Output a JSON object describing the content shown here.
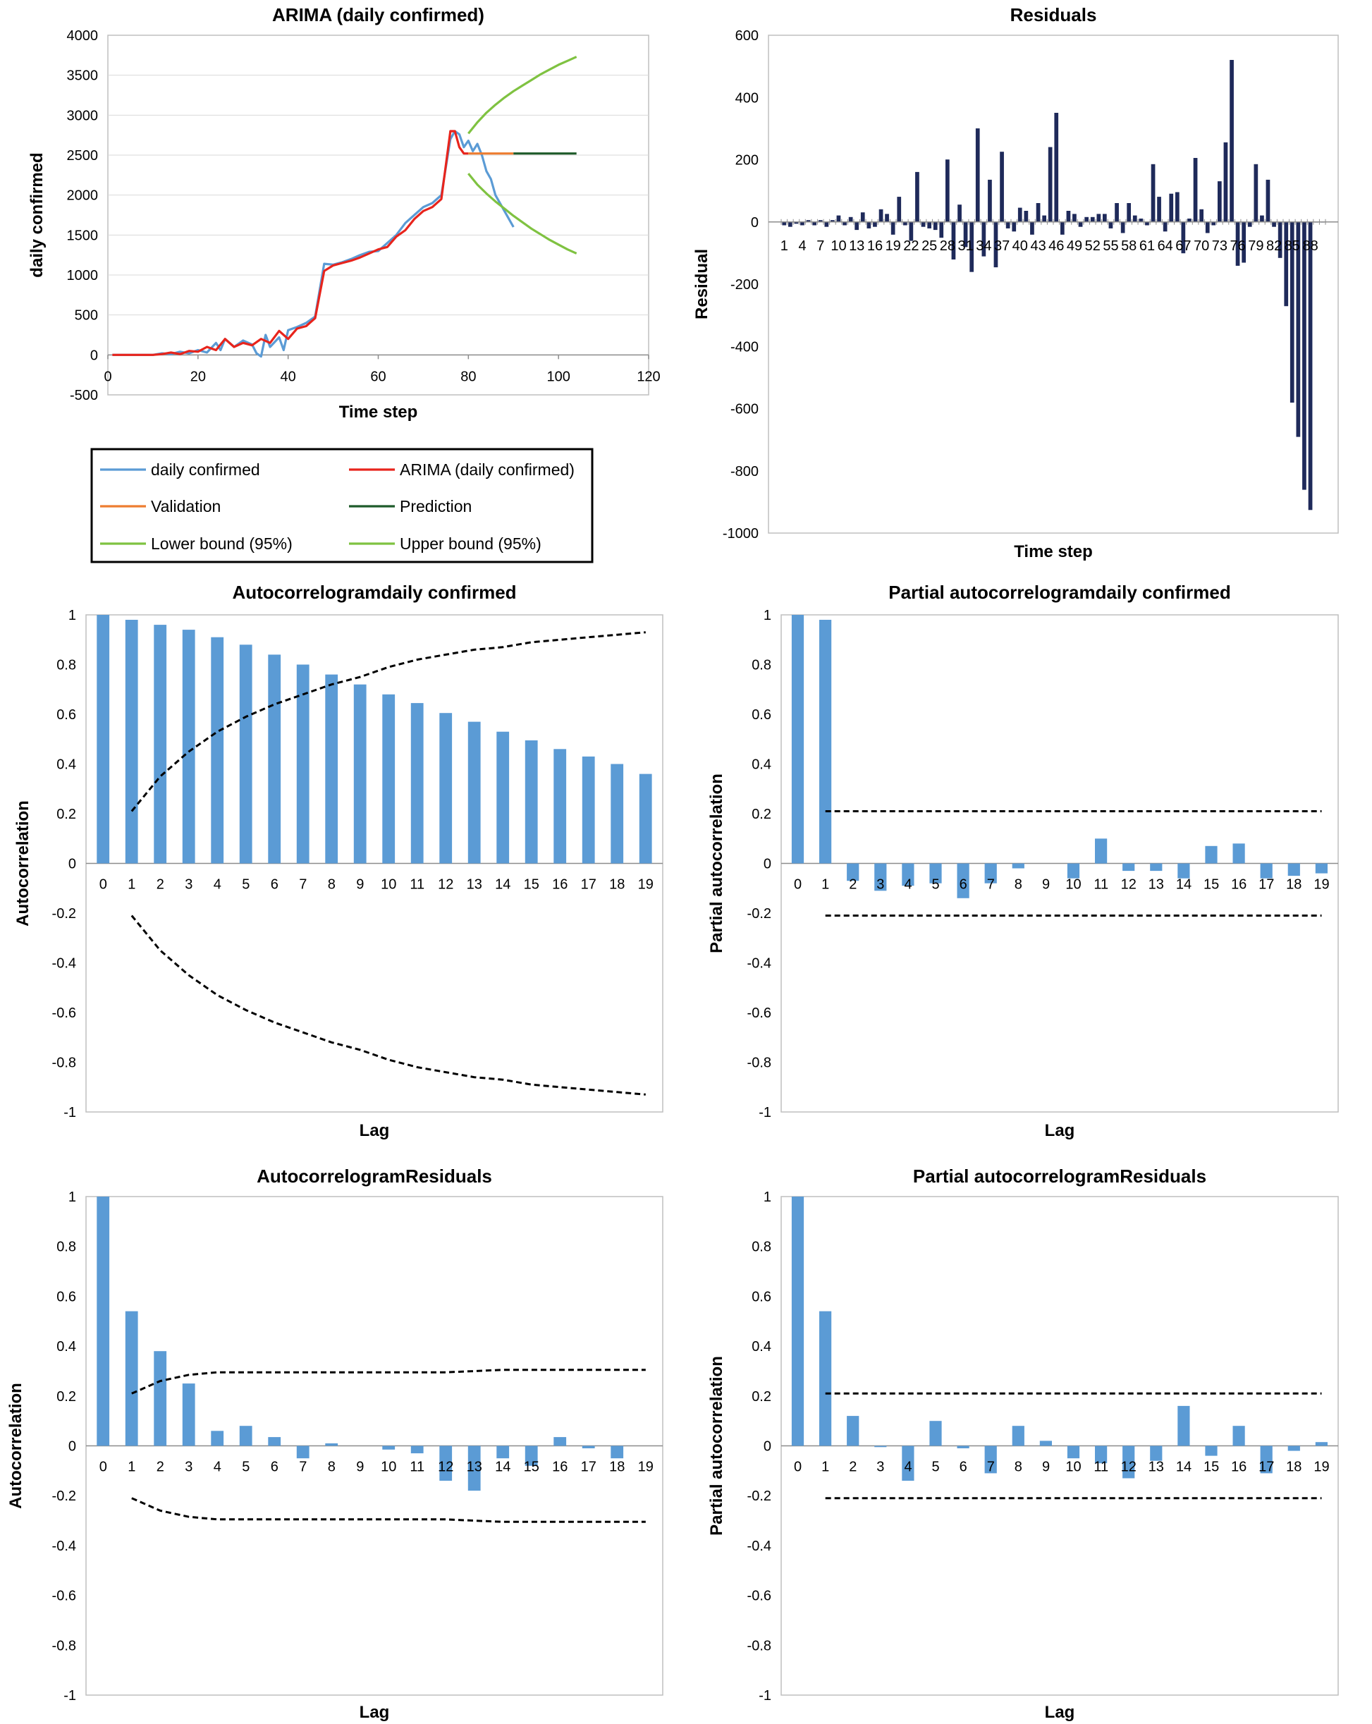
{
  "chart_data": [
    {
      "id": "arima",
      "type": "line",
      "title": "ARIMA (daily confirmed)",
      "xlabel": "Time step",
      "ylabel": "daily confirmed",
      "xlim": [
        0,
        120
      ],
      "ylim": [
        -500,
        4000
      ],
      "xticks": [
        0,
        20,
        40,
        60,
        80,
        100,
        120
      ],
      "yticks": [
        -500,
        0,
        500,
        1000,
        1500,
        2000,
        2500,
        3000,
        3500,
        4000
      ],
      "series": [
        {
          "name": "daily confirmed",
          "color": "#5b9bd5",
          "x": [
            1,
            5,
            10,
            12,
            14,
            16,
            18,
            20,
            22,
            24,
            25,
            26,
            28,
            30,
            32,
            33,
            34,
            35,
            36,
            38,
            39,
            40,
            42,
            44,
            46,
            48,
            50,
            52,
            54,
            56,
            58,
            60,
            62,
            64,
            66,
            68,
            70,
            72,
            74,
            76,
            77,
            78,
            79,
            80,
            81,
            82,
            83,
            84,
            85,
            86,
            88,
            90
          ],
          "y": [
            0,
            0,
            0,
            20,
            10,
            40,
            20,
            60,
            30,
            150,
            60,
            200,
            100,
            180,
            130,
            20,
            -20,
            250,
            100,
            220,
            60,
            310,
            350,
            400,
            480,
            1140,
            1130,
            1160,
            1200,
            1250,
            1290,
            1300,
            1400,
            1500,
            1650,
            1750,
            1850,
            1900,
            2000,
            2700,
            2800,
            2760,
            2600,
            2680,
            2550,
            2640,
            2500,
            2300,
            2200,
            2000,
            1800,
            1600
          ]
        },
        {
          "name": "ARIMA (daily confirmed)",
          "color": "#e8241c",
          "x": [
            1,
            5,
            10,
            12,
            14,
            16,
            18,
            20,
            22,
            24,
            26,
            28,
            30,
            32,
            34,
            36,
            38,
            40,
            42,
            44,
            46,
            48,
            50,
            52,
            54,
            56,
            58,
            60,
            62,
            64,
            66,
            68,
            70,
            72,
            74,
            76,
            77,
            78,
            79,
            80
          ],
          "y": [
            0,
            0,
            0,
            10,
            30,
            10,
            50,
            40,
            100,
            60,
            200,
            100,
            150,
            120,
            200,
            150,
            300,
            200,
            330,
            360,
            460,
            1050,
            1120,
            1150,
            1180,
            1220,
            1270,
            1320,
            1350,
            1480,
            1560,
            1700,
            1800,
            1850,
            1950,
            2800,
            2800,
            2600,
            2520,
            2520
          ]
        },
        {
          "name": "Validation",
          "color": "#ed7d31",
          "x": [
            80,
            90
          ],
          "y": [
            2520,
            2520
          ]
        },
        {
          "name": "Prediction",
          "color": "#1e5b2a",
          "x": [
            90,
            104
          ],
          "y": [
            2520,
            2520
          ]
        },
        {
          "name": "Lower bound (95%)",
          "color": "#7fc241",
          "x": [
            80,
            82,
            84,
            86,
            88,
            90,
            92,
            94,
            96,
            98,
            100,
            102,
            104
          ],
          "y": [
            2270,
            2130,
            2020,
            1920,
            1830,
            1740,
            1660,
            1580,
            1510,
            1440,
            1380,
            1320,
            1270
          ]
        },
        {
          "name": "Upper bound (95%)",
          "color": "#7fc241",
          "x": [
            80,
            82,
            84,
            86,
            88,
            90,
            92,
            94,
            96,
            98,
            100,
            102,
            104
          ],
          "y": [
            2770,
            2910,
            3030,
            3130,
            3220,
            3300,
            3370,
            3440,
            3510,
            3570,
            3630,
            3680,
            3730
          ]
        }
      ],
      "legend": {
        "position": "bottom",
        "items": [
          "daily confirmed",
          "ARIMA (daily confirmed)",
          "Validation",
          "Prediction",
          "Lower bound (95%)",
          "Upper bound (95%)"
        ]
      }
    },
    {
      "id": "residuals",
      "type": "bar",
      "title": "Residuals",
      "xlabel": "Time step",
      "ylabel": "Residual",
      "ylim": [
        -1000,
        600
      ],
      "yticks": [
        -1000,
        -800,
        -600,
        -400,
        -200,
        0,
        200,
        400,
        600
      ],
      "categories": [
        "1",
        "2",
        "3",
        "4",
        "5",
        "6",
        "7",
        "8",
        "9",
        "10",
        "11",
        "12",
        "13",
        "14",
        "15",
        "16",
        "17",
        "18",
        "19",
        "20",
        "21",
        "22",
        "23",
        "24",
        "25",
        "26",
        "27",
        "28",
        "29",
        "30",
        "31",
        "32",
        "33",
        "34",
        "35",
        "36",
        "37",
        "38",
        "39",
        "40",
        "41",
        "42",
        "43",
        "44",
        "45",
        "46",
        "47",
        "48",
        "49",
        "50",
        "51",
        "52",
        "53",
        "54",
        "55",
        "56",
        "57",
        "58",
        "59",
        "60",
        "61",
        "62",
        "63",
        "64",
        "65",
        "66",
        "67",
        "68",
        "69",
        "70",
        "71",
        "72",
        "73",
        "74",
        "75",
        "76",
        "77",
        "78",
        "79",
        "80",
        "81",
        "82",
        "83",
        "84",
        "85",
        "86",
        "87",
        "88",
        "89",
        "90"
      ],
      "category_labels": [
        "1",
        "4",
        "7",
        "10",
        "13",
        "16",
        "19",
        "22",
        "25",
        "28",
        "31",
        "34",
        "37",
        "40",
        "43",
        "46",
        "49",
        "52",
        "55",
        "58",
        "61",
        "64",
        "67",
        "70",
        "73",
        "76",
        "79",
        "82",
        "85",
        "88"
      ],
      "values": [
        -10,
        -15,
        -5,
        -10,
        5,
        -10,
        5,
        -15,
        5,
        20,
        -10,
        15,
        -25,
        30,
        -20,
        -15,
        40,
        25,
        -40,
        80,
        -10,
        -60,
        160,
        -15,
        -20,
        -25,
        -50,
        200,
        -120,
        55,
        -80,
        -160,
        300,
        -110,
        135,
        -145,
        225,
        -20,
        -30,
        45,
        35,
        -40,
        60,
        20,
        240,
        350,
        -40,
        35,
        25,
        -15,
        15,
        15,
        25,
        25,
        -20,
        60,
        -35,
        60,
        20,
        10,
        -10,
        185,
        80,
        -30,
        90,
        95,
        -100,
        10,
        205,
        40,
        -35,
        -10,
        130,
        255,
        520,
        -140,
        -130,
        -15,
        185,
        20,
        135,
        -15,
        -115,
        -270,
        -580,
        -690,
        -860,
        -925,
        0,
        0
      ]
    },
    {
      "id": "acf_daily",
      "type": "bar",
      "title": "Autocorrelogramdaily confirmed",
      "xlabel": "Lag",
      "ylabel": "Autocorrelation",
      "ylim": [
        -1,
        1
      ],
      "yticks": [
        -1,
        -0.8,
        -0.6,
        -0.4,
        -0.2,
        0,
        0.2,
        0.4,
        0.6,
        0.8,
        1
      ],
      "categories": [
        "0",
        "1",
        "2",
        "3",
        "4",
        "5",
        "6",
        "7",
        "8",
        "9",
        "10",
        "11",
        "12",
        "13",
        "14",
        "15",
        "16",
        "17",
        "18",
        "19"
      ],
      "values": [
        1,
        0.98,
        0.96,
        0.94,
        0.91,
        0.88,
        0.84,
        0.8,
        0.76,
        0.72,
        0.68,
        0.645,
        0.605,
        0.57,
        0.53,
        0.495,
        0.46,
        0.43,
        0.4,
        0.36
      ],
      "band_upper": [
        null,
        0.21,
        0.35,
        0.45,
        0.53,
        0.59,
        0.64,
        0.68,
        0.72,
        0.75,
        0.79,
        0.82,
        0.84,
        0.86,
        0.87,
        0.89,
        0.9,
        0.91,
        0.92,
        0.93
      ],
      "band_lower": [
        null,
        -0.21,
        -0.35,
        -0.45,
        -0.53,
        -0.59,
        -0.64,
        -0.68,
        -0.72,
        -0.75,
        -0.79,
        -0.82,
        -0.84,
        -0.86,
        -0.87,
        -0.89,
        -0.9,
        -0.91,
        -0.92,
        -0.93
      ]
    },
    {
      "id": "pacf_daily",
      "type": "bar",
      "title": "Partial autocorrelogramdaily confirmed",
      "xlabel": "Lag",
      "ylabel": "Partial autocorrelation",
      "ylim": [
        -1,
        1
      ],
      "yticks": [
        -1,
        -0.8,
        -0.6,
        -0.4,
        -0.2,
        0,
        0.2,
        0.4,
        0.6,
        0.8,
        1
      ],
      "categories": [
        "0",
        "1",
        "2",
        "3",
        "4",
        "5",
        "6",
        "7",
        "8",
        "9",
        "10",
        "11",
        "12",
        "13",
        "14",
        "15",
        "16",
        "17",
        "18",
        "19"
      ],
      "values": [
        1,
        0.98,
        -0.07,
        -0.11,
        -0.09,
        -0.08,
        -0.14,
        -0.08,
        -0.02,
        0,
        -0.06,
        0.1,
        -0.03,
        -0.03,
        -0.06,
        0.07,
        0.08,
        -0.06,
        -0.05,
        -0.04
      ],
      "band_upper": [
        null,
        0.21,
        0.21,
        0.21,
        0.21,
        0.21,
        0.21,
        0.21,
        0.21,
        0.21,
        0.21,
        0.21,
        0.21,
        0.21,
        0.21,
        0.21,
        0.21,
        0.21,
        0.21,
        0.21
      ],
      "band_lower": [
        null,
        -0.21,
        -0.21,
        -0.21,
        -0.21,
        -0.21,
        -0.21,
        -0.21,
        -0.21,
        -0.21,
        -0.21,
        -0.21,
        -0.21,
        -0.21,
        -0.21,
        -0.21,
        -0.21,
        -0.21,
        -0.21,
        -0.21
      ]
    },
    {
      "id": "acf_resid",
      "type": "bar",
      "title": "AutocorrelogramResiduals",
      "xlabel": "Lag",
      "ylabel": "Autocorrelation",
      "ylim": [
        -1,
        1
      ],
      "yticks": [
        -1,
        -0.8,
        -0.6,
        -0.4,
        -0.2,
        0,
        0.2,
        0.4,
        0.6,
        0.8,
        1
      ],
      "categories": [
        "0",
        "1",
        "2",
        "3",
        "4",
        "5",
        "6",
        "7",
        "8",
        "9",
        "10",
        "11",
        "12",
        "13",
        "14",
        "15",
        "16",
        "17",
        "18",
        "19"
      ],
      "values": [
        1,
        0.54,
        0.38,
        0.25,
        0.06,
        0.08,
        0.035,
        -0.05,
        0.01,
        0,
        -0.015,
        -0.03,
        -0.14,
        -0.18,
        -0.05,
        -0.08,
        0.035,
        -0.01,
        -0.05,
        0
      ],
      "band_upper": [
        null,
        0.21,
        0.26,
        0.285,
        0.295,
        0.295,
        0.295,
        0.295,
        0.295,
        0.295,
        0.295,
        0.295,
        0.295,
        0.3,
        0.305,
        0.305,
        0.305,
        0.305,
        0.305,
        0.305
      ],
      "band_lower": [
        null,
        -0.21,
        -0.26,
        -0.285,
        -0.295,
        -0.295,
        -0.295,
        -0.295,
        -0.295,
        -0.295,
        -0.295,
        -0.295,
        -0.295,
        -0.3,
        -0.305,
        -0.305,
        -0.305,
        -0.305,
        -0.305,
        -0.305
      ]
    },
    {
      "id": "pacf_resid",
      "type": "bar",
      "title": "Partial autocorrelogramResiduals",
      "xlabel": "Lag",
      "ylabel": "Partial autocorrelation",
      "ylim": [
        -1,
        1
      ],
      "yticks": [
        -1,
        -0.8,
        -0.6,
        -0.4,
        -0.2,
        0,
        0.2,
        0.4,
        0.6,
        0.8,
        1
      ],
      "categories": [
        "0",
        "1",
        "2",
        "3",
        "4",
        "5",
        "6",
        "7",
        "8",
        "9",
        "10",
        "11",
        "12",
        "13",
        "14",
        "15",
        "16",
        "17",
        "18",
        "19"
      ],
      "values": [
        1,
        0.54,
        0.12,
        -0.005,
        -0.14,
        0.1,
        -0.01,
        -0.11,
        0.08,
        0.02,
        -0.05,
        -0.07,
        -0.13,
        -0.06,
        0.16,
        -0.04,
        0.08,
        -0.11,
        -0.02,
        0.015
      ],
      "band_upper": [
        null,
        0.21,
        0.21,
        0.21,
        0.21,
        0.21,
        0.21,
        0.21,
        0.21,
        0.21,
        0.21,
        0.21,
        0.21,
        0.21,
        0.21,
        0.21,
        0.21,
        0.21,
        0.21,
        0.21
      ],
      "band_lower": [
        null,
        -0.21,
        -0.21,
        -0.21,
        -0.21,
        -0.21,
        -0.21,
        -0.21,
        -0.21,
        -0.21,
        -0.21,
        -0.21,
        -0.21,
        -0.21,
        -0.21,
        -0.21,
        -0.21,
        -0.21,
        -0.21,
        -0.21
      ]
    }
  ]
}
